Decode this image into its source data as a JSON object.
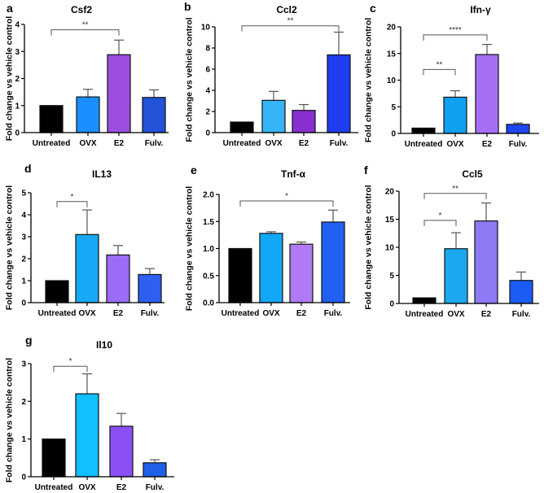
{
  "chart_data": [
    {
      "panel": "a",
      "type": "bar",
      "title": "Csf2",
      "ylabel": "Fold change vs vehicle control",
      "categories": [
        "Untreated",
        "OVX",
        "E2",
        "Fulv."
      ],
      "values": [
        1,
        1.32,
        2.88,
        1.3
      ],
      "errors": [
        0,
        0.28,
        0.54,
        0.28
      ],
      "colors": [
        "#000000",
        "#1a8fff",
        "#9b4ee0",
        "#2353d8"
      ],
      "ylim": [
        0,
        4
      ],
      "yticks": [
        "0",
        "1",
        "2",
        "3",
        "4"
      ],
      "sig": [
        {
          "from": 0,
          "to": 2,
          "label": "**",
          "y": 3.8
        }
      ]
    },
    {
      "panel": "b",
      "type": "bar",
      "title": "Ccl2",
      "ylabel": "Fold change vs vehicle control",
      "categories": [
        "Untreated",
        "OVX",
        "E2",
        "Fulv."
      ],
      "values": [
        1,
        3.05,
        2.1,
        7.35
      ],
      "errors": [
        0,
        0.85,
        0.55,
        2.15
      ],
      "colors": [
        "#000000",
        "#35b5f5",
        "#8a2fd0",
        "#1f3cf0"
      ],
      "ylim": [
        0,
        10
      ],
      "yticks": [
        "0",
        "2",
        "4",
        "6",
        "8",
        "10"
      ],
      "sig": [
        {
          "from": 0,
          "to": 3,
          "label": "**",
          "y": 10.1
        }
      ]
    },
    {
      "panel": "c",
      "type": "bar",
      "title": "Ifn-γ",
      "ylabel": "Fold change vs vehicle control",
      "categories": [
        "Untreated",
        "OVX",
        "E2",
        "Fulv."
      ],
      "values": [
        1,
        6.8,
        14.8,
        1.7
      ],
      "errors": [
        0,
        1.2,
        1.9,
        0.25
      ],
      "colors": [
        "#000000",
        "#12a0f0",
        "#a66ef5",
        "#1d46f0"
      ],
      "ylim": [
        0,
        20
      ],
      "yticks": [
        "0",
        "5",
        "10",
        "15",
        "20"
      ],
      "sig": [
        {
          "from": 0,
          "to": 1,
          "label": "**",
          "y": 12
        },
        {
          "from": 0,
          "to": 2,
          "label": "****",
          "y": 18.5
        }
      ]
    },
    {
      "panel": "d",
      "type": "bar",
      "title": "IL13",
      "ylabel": "Fold change vs vehicle control",
      "categories": [
        "Untreated",
        "OVX",
        "E2",
        "Fulv."
      ],
      "values": [
        1,
        3.1,
        2.17,
        1.28
      ],
      "errors": [
        0,
        1.12,
        0.43,
        0.27
      ],
      "colors": [
        "#000000",
        "#19a8f5",
        "#9b6cf5",
        "#2f5ff0"
      ],
      "ylim": [
        0,
        5
      ],
      "yticks": [
        "0",
        "1",
        "2",
        "3",
        "4",
        "5"
      ],
      "sig": [
        {
          "from": 0,
          "to": 1,
          "label": "*",
          "y": 4.6
        }
      ]
    },
    {
      "panel": "e",
      "type": "bar",
      "title": "Tnf-α",
      "ylabel": "Fold change vs vehicle control",
      "categories": [
        "Untreated",
        "OVX",
        "E2",
        "Fulv."
      ],
      "values": [
        1,
        1.28,
        1.08,
        1.49
      ],
      "errors": [
        0,
        0.03,
        0.04,
        0.22
      ],
      "colors": [
        "#000000",
        "#12a8f8",
        "#b07af5",
        "#2160f0"
      ],
      "ylim": [
        0,
        2
      ],
      "yticks": [
        "0.0",
        "0.5",
        "1.0",
        "1.5",
        "2.0"
      ],
      "sig": [
        {
          "from": 0,
          "to": 3,
          "label": "*",
          "y": 1.88
        }
      ]
    },
    {
      "panel": "f",
      "type": "bar",
      "title": "Ccl5",
      "ylabel": "Fold change vs vehicle control",
      "categories": [
        "Untreated",
        "OVX",
        "E2",
        "Fulv."
      ],
      "values": [
        1,
        9.75,
        14.7,
        4.1
      ],
      "errors": [
        0,
        2.85,
        3.2,
        1.5
      ],
      "colors": [
        "#000000",
        "#1aa8f0",
        "#8d7af5",
        "#1a5cf5"
      ],
      "ylim": [
        0,
        20
      ],
      "yticks": [
        "0",
        "5",
        "10",
        "15",
        "20"
      ],
      "sig": [
        {
          "from": 0,
          "to": 1,
          "label": "*",
          "y": 14.8
        },
        {
          "from": 0,
          "to": 2,
          "label": "**",
          "y": 19.6
        }
      ]
    },
    {
      "panel": "g",
      "type": "bar",
      "title": "Il10",
      "ylabel": "Fold change vs vehicle control",
      "categories": [
        "Untreated",
        "OVX",
        "E2",
        "Fulv."
      ],
      "values": [
        1,
        2.2,
        1.34,
        0.37
      ],
      "errors": [
        0,
        0.53,
        0.34,
        0.08
      ],
      "colors": [
        "#000000",
        "#10c0ff",
        "#8a50f5",
        "#2060e8"
      ],
      "ylim": [
        0,
        3
      ],
      "yticks": [
        "0",
        "1",
        "2",
        "3"
      ],
      "sig": [
        {
          "from": 0,
          "to": 1,
          "label": "*",
          "y": 2.93
        }
      ]
    }
  ]
}
